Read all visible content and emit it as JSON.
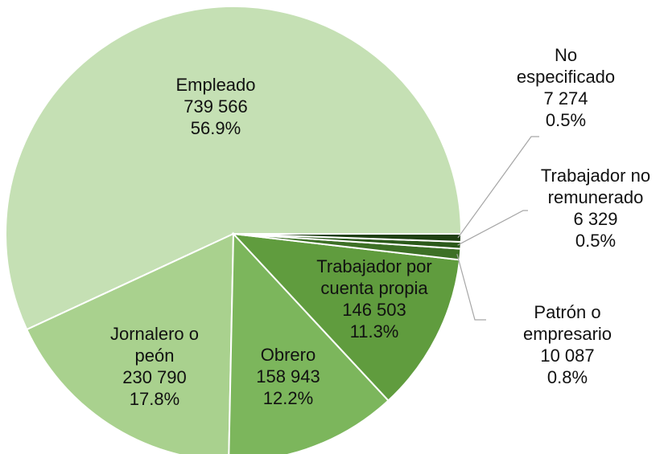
{
  "chart_data": {
    "type": "pie",
    "categories": [
      "Empleado",
      "Jornalero o peón",
      "Obrero",
      "Trabajador por cuenta propia",
      "Patrón o empresario",
      "Trabajador no remunerado",
      "No especificado"
    ],
    "values": [
      739566,
      230790,
      158943,
      146503,
      10087,
      6329,
      7274
    ],
    "value_labels": [
      "739 566",
      "230 790",
      "158 943",
      "146 503",
      "10 087",
      "6 329",
      "7 274"
    ],
    "percentages": [
      56.9,
      17.8,
      12.2,
      11.3,
      0.8,
      0.5,
      0.5
    ],
    "percentage_labels": [
      "56.9%",
      "17.8%",
      "12.2%",
      "11.3%",
      "0.8%",
      "0.5%",
      "0.5%"
    ],
    "colors": [
      "#c5e0b4",
      "#a9d18e",
      "#7cb65c",
      "#609c3e",
      "#3d7026",
      "#2c5a1b",
      "#1f4013"
    ]
  }
}
